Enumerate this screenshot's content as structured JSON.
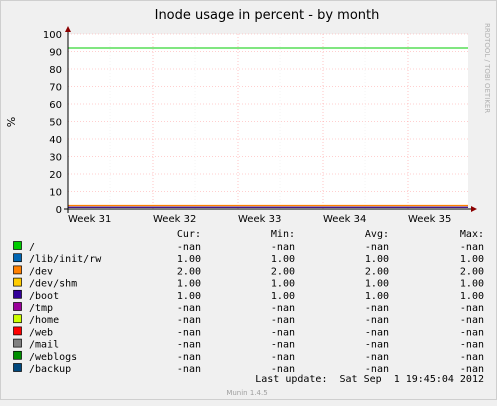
{
  "chart_data": {
    "type": "line",
    "title": "Inode usage in percent - by month",
    "ylabel": "%",
    "side_label": "RRDTOOL / TOBI OETIKER",
    "ylim": [
      0,
      100
    ],
    "yticks": [
      0,
      10,
      20,
      30,
      40,
      50,
      60,
      70,
      80,
      90,
      100
    ],
    "x_categories": [
      "Week 31",
      "Week 32",
      "Week 33",
      "Week 34",
      "Week 35"
    ],
    "warning_line": {
      "value": 92,
      "color": "#00cc00"
    },
    "series": [
      {
        "name": "/",
        "color": "#00cc00",
        "cur": "-nan",
        "min": "-nan",
        "avg": "-nan",
        "max": "-nan",
        "value": null
      },
      {
        "name": "/lib/init/rw",
        "color": "#0066b3",
        "cur": "1.00",
        "min": "1.00",
        "avg": "1.00",
        "max": "1.00",
        "value": 1.0
      },
      {
        "name": "/dev",
        "color": "#ff8000",
        "cur": "2.00",
        "min": "2.00",
        "avg": "2.00",
        "max": "2.00",
        "value": 2.0
      },
      {
        "name": "/dev/shm",
        "color": "#ffcc00",
        "cur": "1.00",
        "min": "1.00",
        "avg": "1.00",
        "max": "1.00",
        "value": 1.0
      },
      {
        "name": "/boot",
        "color": "#330099",
        "cur": "1.00",
        "min": "1.00",
        "avg": "1.00",
        "max": "1.00",
        "value": 1.0
      },
      {
        "name": "/tmp",
        "color": "#990099",
        "cur": "-nan",
        "min": "-nan",
        "avg": "-nan",
        "max": "-nan",
        "value": null
      },
      {
        "name": "/home",
        "color": "#ccff00",
        "cur": "-nan",
        "min": "-nan",
        "avg": "-nan",
        "max": "-nan",
        "value": null
      },
      {
        "name": "/web",
        "color": "#ff0000",
        "cur": "-nan",
        "min": "-nan",
        "avg": "-nan",
        "max": "-nan",
        "value": null
      },
      {
        "name": "/mail",
        "color": "#808080",
        "cur": "-nan",
        "min": "-nan",
        "avg": "-nan",
        "max": "-nan",
        "value": null
      },
      {
        "name": "/weblogs",
        "color": "#008f00",
        "cur": "-nan",
        "min": "-nan",
        "avg": "-nan",
        "max": "-nan",
        "value": null
      },
      {
        "name": "/backup",
        "color": "#00487d",
        "cur": "-nan",
        "min": "-nan",
        "avg": "-nan",
        "max": "-nan",
        "value": null
      }
    ]
  },
  "legend_headers": {
    "cur": "Cur:",
    "min": "Min:",
    "avg": "Avg:",
    "max": "Max:"
  },
  "last_update": "Last update:  Sat Sep  1 19:45:04 2012",
  "footer": "Munin 1.4.5"
}
